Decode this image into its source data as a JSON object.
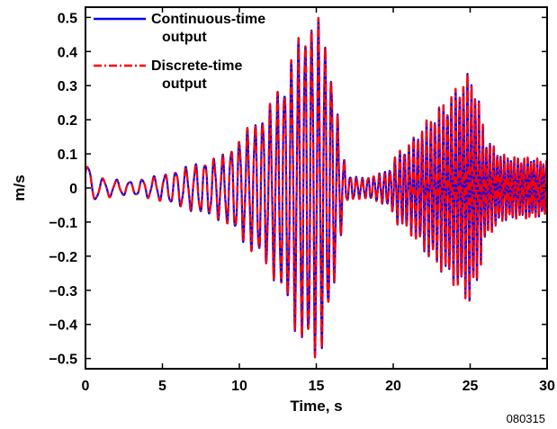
{
  "chart_data": {
    "type": "line",
    "title": "",
    "xlabel": "Time, s",
    "ylabel": "m/s",
    "xlim": [
      0,
      30
    ],
    "ylim": [
      -0.53,
      0.53
    ],
    "x_ticks": [
      0,
      5,
      10,
      15,
      20,
      25,
      30
    ],
    "y_ticks": [
      -0.5,
      -0.4,
      -0.3,
      -0.2,
      -0.1,
      0,
      0.1,
      0.2,
      0.3,
      0.4,
      0.5
    ],
    "x_tick_labels": [
      "0",
      "5",
      "10",
      "15",
      "20",
      "25",
      "30"
    ],
    "y_tick_labels": [
      "−0.5",
      "−0.4",
      "−0.3",
      "−0.2",
      "−0.1",
      "0",
      "0.1",
      "0.2",
      "0.3",
      "0.4",
      "0.5"
    ],
    "grid": false,
    "legend_position": "top-left",
    "series": [
      {
        "name": "Continuous-time output",
        "name_lines": [
          "Continuous-time",
          "output"
        ],
        "color": "#0000ff",
        "line_style": "solid",
        "envelope": {
          "time": [
            0,
            0.5,
            1,
            3,
            5,
            7,
            9,
            10,
            11,
            12,
            13,
            13.5,
            14,
            14.5,
            15,
            15.5,
            16,
            16.6,
            17,
            18,
            19,
            19.8,
            20.3,
            21,
            22,
            23,
            24,
            24.6,
            25,
            25.4,
            26,
            27,
            28,
            29,
            30
          ],
          "peak_amplitude": [
            0.09,
            0.04,
            0.03,
            0.02,
            0.04,
            0.07,
            0.1,
            0.15,
            0.2,
            0.25,
            0.34,
            0.41,
            0.46,
            0.51,
            0.51,
            0.47,
            0.36,
            0.14,
            0.04,
            0.03,
            0.04,
            0.06,
            0.11,
            0.13,
            0.19,
            0.24,
            0.29,
            0.33,
            0.34,
            0.3,
            0.15,
            0.1,
            0.09,
            0.09,
            0.08
          ],
          "dominant_frequency_hz": [
            1.0,
            1.0,
            1.1,
            1.2,
            1.4,
            1.6,
            1.8,
            1.9,
            2.0,
            2.1,
            2.2,
            2.2,
            2.3,
            2.3,
            2.3,
            2.4,
            2.4,
            2.4,
            2.5,
            2.6,
            2.8,
            3.0,
            3.2,
            3.4,
            3.6,
            3.7,
            3.8,
            3.9,
            4.0,
            4.0,
            4.2,
            4.4,
            4.6,
            4.8,
            5.0
          ]
        }
      },
      {
        "name": "Discrete-time output",
        "name_lines": [
          "Discrete-time",
          "output"
        ],
        "color": "#ff0000",
        "line_style": "dash-dot",
        "envelope": {
          "time": [
            0,
            0.5,
            1,
            3,
            5,
            7,
            9,
            10,
            11,
            12,
            13,
            13.5,
            14,
            14.5,
            15,
            15.5,
            16,
            16.6,
            17,
            18,
            19,
            19.8,
            20.3,
            21,
            22,
            23,
            24,
            24.6,
            25,
            25.4,
            26,
            27,
            28,
            29,
            30
          ],
          "peak_amplitude": [
            0.09,
            0.04,
            0.03,
            0.02,
            0.04,
            0.07,
            0.1,
            0.15,
            0.2,
            0.25,
            0.34,
            0.41,
            0.46,
            0.51,
            0.51,
            0.47,
            0.36,
            0.14,
            0.04,
            0.03,
            0.04,
            0.06,
            0.11,
            0.13,
            0.19,
            0.24,
            0.29,
            0.33,
            0.34,
            0.3,
            0.15,
            0.1,
            0.09,
            0.09,
            0.08
          ],
          "dominant_frequency_hz": [
            1.0,
            1.0,
            1.1,
            1.2,
            1.4,
            1.6,
            1.8,
            1.9,
            2.0,
            2.1,
            2.2,
            2.2,
            2.3,
            2.3,
            2.3,
            2.4,
            2.4,
            2.4,
            2.5,
            2.6,
            2.8,
            3.0,
            3.2,
            3.4,
            3.6,
            3.7,
            3.8,
            3.9,
            4.0,
            4.0,
            4.2,
            4.4,
            4.6,
            4.8,
            5.0
          ]
        }
      }
    ]
  },
  "figure_id": "080315"
}
